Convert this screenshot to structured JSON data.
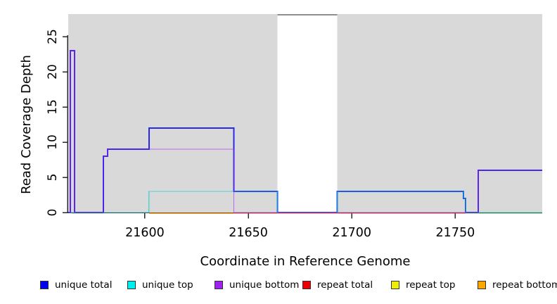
{
  "figure": {
    "background": "#ffffff",
    "plot_background": "#d9d9d9",
    "axis_color": "#2a2a2a",
    "gap_border_color": "#8f8f8f"
  },
  "chart_data": {
    "type": "line",
    "subtype": "step-coverage",
    "title": "",
    "xlabel": "Coordinate in Reference Genome",
    "ylabel": "Read Coverage Depth",
    "xlim": [
      21563,
      21792
    ],
    "ylim": [
      0,
      28.2
    ],
    "x_ticks": [
      21600,
      21650,
      21700,
      21750
    ],
    "y_ticks": [
      0,
      5,
      10,
      15,
      20,
      25
    ],
    "grid": false,
    "legend_position": "bottom",
    "no_data_region": {
      "from": 21664,
      "to": 21693
    },
    "series": [
      {
        "name": "unique total",
        "stroke": "#1a1aee",
        "width": 2,
        "opacity": 0.92,
        "dy": 0,
        "segments": [
          {
            "steps": [
              [
                21563,
                0
              ],
              [
                21564,
                23
              ],
              [
                21566,
                0
              ],
              [
                21580,
                8
              ],
              [
                21582,
                9
              ],
              [
                21602,
                12
              ],
              [
                21643,
                3
              ],
              [
                21664,
                0
              ],
              [
                21693,
                3
              ],
              [
                21754,
                2
              ],
              [
                21755,
                0
              ],
              [
                21761,
                6
              ]
            ],
            "end": 21792
          }
        ]
      },
      {
        "name": "unique top",
        "stroke": "#00cccc",
        "width": 1.4,
        "opacity": 0.62,
        "dy": 0,
        "segments": [
          {
            "steps": [
              [
                21563,
                0
              ],
              [
                21602,
                3
              ],
              [
                21664,
                0
              ],
              [
                21693,
                3
              ],
              [
                21754,
                2
              ],
              [
                21755,
                0
              ]
            ],
            "end": 21792
          }
        ]
      },
      {
        "name": "unique bottom",
        "stroke": "#a020f0",
        "width": 1.4,
        "opacity": 0.6,
        "dy": 0,
        "segments": [
          {
            "steps": [
              [
                21563,
                0
              ],
              [
                21564,
                23
              ],
              [
                21566,
                0
              ],
              [
                21580,
                8
              ],
              [
                21582,
                9
              ],
              [
                21643,
                0
              ],
              [
                21761,
                6
              ]
            ],
            "end": 21792
          }
        ]
      },
      {
        "name": "repeat top",
        "stroke": "#dede00",
        "width": 1.3,
        "opacity": 0.6,
        "dy": 1,
        "segments": [
          {
            "steps": [
              [
                21643,
                0
              ]
            ],
            "end": 21755
          }
        ]
      },
      {
        "name": "repeat total",
        "stroke": "#e02048",
        "width": 1.3,
        "opacity": 0.72,
        "dy": 1,
        "segments": [
          {
            "steps": [
              [
                21643,
                0
              ]
            ],
            "end": 21755
          }
        ]
      },
      {
        "name": "repeat bottom",
        "stroke": "#ff9800",
        "width": 1.5,
        "opacity": 0.78,
        "dy": 1,
        "segments": [
          {
            "steps": [
              [
                21602,
                0
              ]
            ],
            "end": 21643
          }
        ]
      },
      {
        "name": "zero-coverage line",
        "stroke": "#2e9e2e",
        "width": 1.3,
        "opacity": 0.6,
        "dy": 1,
        "segments": [
          {
            "steps": [
              [
                21565,
                0
              ]
            ],
            "end": 21580
          },
          {
            "steps": [
              [
                21755,
                0
              ]
            ],
            "end": 21792
          }
        ]
      }
    ]
  },
  "legend": {
    "items": [
      {
        "label": "unique total",
        "color": "#0000ee"
      },
      {
        "label": "unique top",
        "color": "#00eeee"
      },
      {
        "label": "unique bottom",
        "color": "#a020f0"
      },
      {
        "label": "repeat total",
        "color": "#ee0000"
      },
      {
        "label": "repeat top",
        "color": "#eeee00"
      },
      {
        "label": "repeat bottom",
        "color": "#ffa500"
      }
    ]
  }
}
